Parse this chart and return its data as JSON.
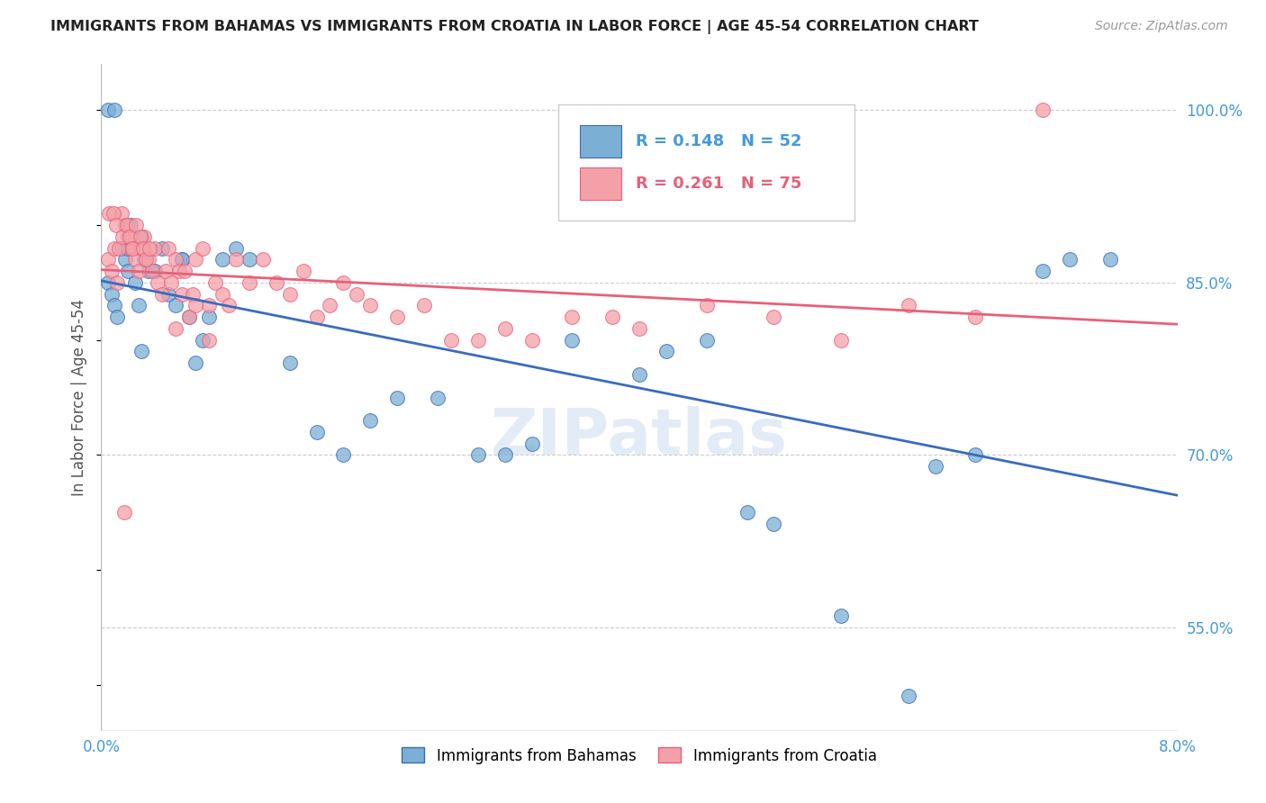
{
  "title": "IMMIGRANTS FROM BAHAMAS VS IMMIGRANTS FROM CROATIA IN LABOR FORCE | AGE 45-54 CORRELATION CHART",
  "source": "Source: ZipAtlas.com",
  "ylabel": "In Labor Force | Age 45-54",
  "xmin": 0.0,
  "xmax": 8.0,
  "ymin": 46.0,
  "ymax": 104.0,
  "blue_color": "#7BAFD4",
  "pink_color": "#F4A0A8",
  "blue_line_color": "#3B6BBF",
  "pink_line_color": "#E8607A",
  "title_color": "#222222",
  "right_axis_color": "#4499DD",
  "bahamas_x": [
    0.05,
    0.08,
    0.1,
    0.12,
    0.15,
    0.18,
    0.2,
    0.22,
    0.25,
    0.28,
    0.3,
    0.32,
    0.35,
    0.4,
    0.45,
    0.5,
    0.55,
    0.6,
    0.65,
    0.7,
    0.75,
    0.8,
    0.9,
    1.0,
    1.1,
    1.4,
    1.6,
    1.8,
    2.0,
    2.2,
    2.5,
    2.8,
    3.0,
    3.5,
    4.0,
    4.5,
    4.8,
    5.0,
    5.5,
    6.0,
    6.5,
    7.0,
    7.2,
    7.5,
    0.05,
    0.1,
    0.2,
    0.3,
    0.6,
    3.2,
    4.2,
    6.2
  ],
  "bahamas_y": [
    85,
    84,
    83,
    82,
    88,
    87,
    86,
    90,
    85,
    83,
    89,
    87,
    86,
    86,
    88,
    84,
    83,
    87,
    82,
    78,
    80,
    82,
    87,
    88,
    87,
    78,
    72,
    70,
    73,
    75,
    75,
    70,
    70,
    80,
    77,
    80,
    65,
    64,
    56,
    49,
    70,
    86,
    87,
    87,
    100,
    100,
    88,
    79,
    87,
    71,
    79,
    69
  ],
  "croatia_x": [
    0.05,
    0.08,
    0.1,
    0.12,
    0.15,
    0.18,
    0.2,
    0.22,
    0.25,
    0.28,
    0.3,
    0.32,
    0.35,
    0.38,
    0.4,
    0.42,
    0.45,
    0.48,
    0.5,
    0.52,
    0.55,
    0.58,
    0.6,
    0.62,
    0.65,
    0.68,
    0.7,
    0.75,
    0.8,
    0.85,
    0.9,
    0.95,
    1.0,
    1.1,
    1.2,
    1.3,
    1.4,
    1.5,
    1.6,
    1.7,
    1.8,
    1.9,
    2.0,
    2.2,
    2.4,
    2.6,
    2.8,
    3.0,
    3.2,
    3.5,
    4.0,
    4.5,
    5.0,
    5.5,
    6.0,
    6.5,
    7.0,
    0.06,
    0.09,
    0.11,
    0.13,
    0.16,
    0.19,
    0.21,
    0.23,
    0.26,
    0.29,
    0.31,
    0.33,
    0.36,
    0.17,
    3.8,
    0.55,
    0.7,
    0.8
  ],
  "croatia_y": [
    87,
    86,
    88,
    85,
    91,
    90,
    89,
    88,
    87,
    86,
    88,
    89,
    87,
    86,
    88,
    85,
    84,
    86,
    88,
    85,
    87,
    86,
    84,
    86,
    82,
    84,
    87,
    88,
    83,
    85,
    84,
    83,
    87,
    85,
    87,
    85,
    84,
    86,
    82,
    83,
    85,
    84,
    83,
    82,
    83,
    80,
    80,
    81,
    80,
    82,
    81,
    83,
    82,
    80,
    83,
    82,
    100,
    91,
    91,
    90,
    88,
    89,
    90,
    89,
    88,
    90,
    89,
    88,
    87,
    88,
    65,
    82,
    81,
    83,
    80
  ]
}
